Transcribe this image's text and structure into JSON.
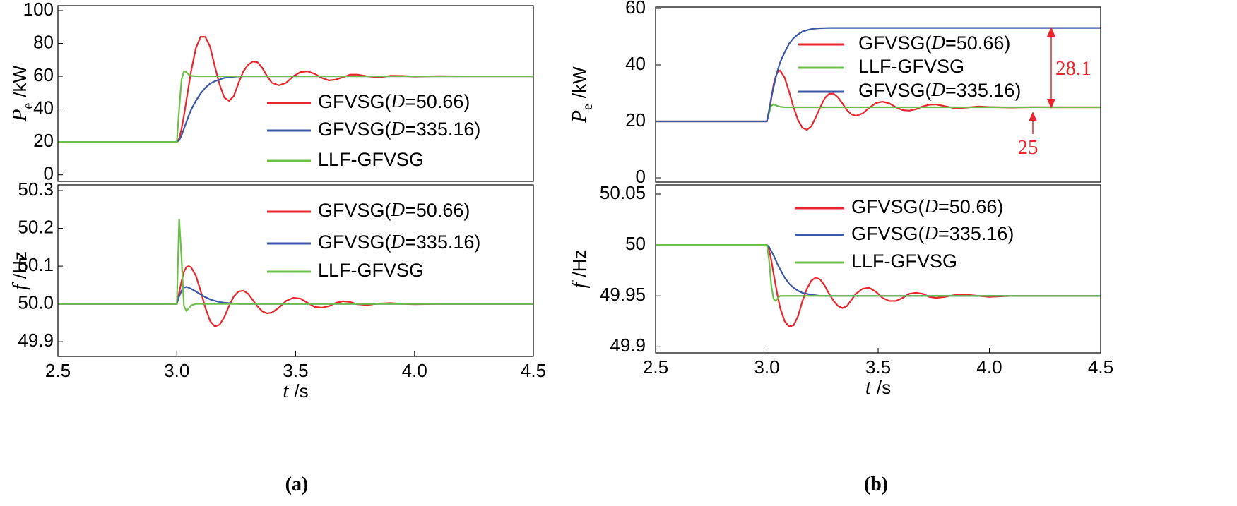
{
  "chart_data": [
    {
      "type": "line",
      "ylabel": {
        "symbol": "P",
        "subscript": "e",
        "unit": "/kW"
      },
      "xlim": [
        2.5,
        4.5
      ],
      "ylim": [
        -4,
        103
      ],
      "yticks": [
        0,
        20,
        40,
        60,
        80,
        100
      ],
      "x": [
        2.5,
        3.0,
        3.01,
        3.02,
        3.03,
        3.04,
        3.05,
        3.06,
        3.08,
        3.1,
        3.12,
        3.14,
        3.16,
        3.18,
        3.2,
        3.22,
        3.24,
        3.26,
        3.28,
        3.3,
        3.32,
        3.34,
        3.36,
        3.38,
        3.4,
        3.43,
        3.46,
        3.49,
        3.52,
        3.55,
        3.58,
        3.61,
        3.64,
        3.67,
        3.7,
        3.73,
        3.76,
        3.8,
        3.85,
        3.9,
        3.95,
        4.0,
        4.1,
        4.2,
        4.3,
        4.4,
        4.5
      ],
      "series": [
        {
          "name": "GFVSG(D=50.66)",
          "color": "#e8262b",
          "values": [
            20,
            20,
            22,
            28,
            36,
            45,
            54,
            63,
            77,
            84,
            84,
            78,
            66,
            55,
            47,
            45,
            48,
            56,
            63,
            67,
            69,
            68.5,
            65,
            60,
            56,
            54.5,
            56,
            60,
            62.5,
            63,
            61.5,
            59,
            57.5,
            58,
            59.5,
            61,
            61,
            60,
            59.3,
            60.3,
            60.2,
            59.8,
            60.1,
            60,
            60,
            60,
            60
          ]
        },
        {
          "name": "GFVSG(D=335.16)",
          "color": "#3a58a8",
          "values": [
            20,
            20,
            21,
            24,
            28,
            32,
            36,
            39.5,
            45,
            49.5,
            53,
            55.5,
            57,
            58,
            59,
            59.4,
            59.7,
            59.9,
            60,
            60,
            60,
            60,
            60,
            60,
            60,
            60,
            60,
            60,
            60,
            60,
            60,
            60,
            60,
            60,
            60,
            60,
            60,
            60,
            60,
            60,
            60,
            60,
            60,
            60,
            60,
            60,
            60
          ]
        },
        {
          "name": "LLF-GFVSG",
          "color": "#6cc04a",
          "values": [
            20,
            20,
            40,
            58,
            63,
            62.5,
            61,
            60.3,
            60,
            60,
            60,
            60,
            60,
            60,
            60,
            60,
            60,
            60,
            60,
            60,
            60,
            60,
            60,
            60,
            60,
            60,
            60,
            60,
            60,
            60,
            60,
            60,
            60,
            60,
            60,
            60,
            60,
            60,
            60,
            60,
            60,
            60,
            60,
            60,
            60,
            60,
            60
          ]
        }
      ]
    },
    {
      "type": "line",
      "ylabel": {
        "symbol": "f",
        "unit": "/Hz"
      },
      "xlabel": {
        "symbol": "t",
        "unit": "/s"
      },
      "xlim": [
        2.5,
        4.5
      ],
      "xticks": [
        2.5,
        {
          "value": 3,
          "label": "3.0"
        },
        3.5,
        {
          "value": 4,
          "label": "4.0"
        },
        4.5
      ],
      "ylim": [
        49.861,
        50.315
      ],
      "yticks": [
        49.9,
        {
          "value": 50,
          "label": "50.0"
        },
        50.1,
        50.2,
        50.3
      ],
      "x": [
        2.5,
        3.0,
        3.01,
        3.02,
        3.03,
        3.04,
        3.05,
        3.06,
        3.08,
        3.1,
        3.12,
        3.14,
        3.16,
        3.18,
        3.2,
        3.22,
        3.24,
        3.26,
        3.28,
        3.3,
        3.32,
        3.34,
        3.36,
        3.38,
        3.4,
        3.43,
        3.46,
        3.49,
        3.52,
        3.55,
        3.58,
        3.61,
        3.64,
        3.67,
        3.7,
        3.73,
        3.76,
        3.8,
        3.85,
        3.9,
        3.95,
        4.0,
        4.1,
        4.2,
        4.3,
        4.4,
        4.5
      ],
      "series": [
        {
          "name": "GFVSG(D=50.66)",
          "color": "#e8262b",
          "values": [
            50,
            50,
            50.03,
            50.06,
            50.085,
            50.097,
            50.1,
            50.097,
            50.075,
            50.035,
            49.99,
            49.955,
            49.94,
            49.945,
            49.965,
            49.995,
            50.02,
            50.033,
            50.035,
            50.027,
            50.01,
            49.993,
            49.98,
            49.975,
            49.977,
            49.99,
            50.008,
            50.016,
            50.014,
            50.003,
            49.992,
            49.99,
            49.994,
            50.003,
            50.007,
            50.005,
            49.999,
            49.997,
            50.001,
            50.002,
            50,
            49.999,
            50,
            50,
            50,
            50,
            50
          ]
        },
        {
          "name": "GFVSG(D=335.16)",
          "color": "#3a58a8",
          "values": [
            50,
            50,
            50.02,
            50.035,
            50.043,
            50.045,
            50.043,
            50.04,
            50.033,
            50.025,
            50.018,
            50.012,
            50.008,
            50.005,
            50.003,
            50.002,
            50.001,
            50,
            50,
            50,
            50,
            50,
            50,
            50,
            50,
            50,
            50,
            50,
            50,
            50,
            50,
            50,
            50,
            50,
            50,
            50,
            50,
            50,
            50,
            50,
            50,
            50,
            50,
            50,
            50,
            50,
            50
          ]
        },
        {
          "name": "LLF-GFVSG",
          "color": "#6cc04a",
          "values": [
            50,
            50,
            50.225,
            50.12,
            49.995,
            49.982,
            49.988,
            49.996,
            50,
            50,
            50,
            50,
            50,
            50,
            50,
            50,
            50,
            50,
            50,
            50,
            50,
            50,
            50,
            50,
            50,
            50,
            50,
            50,
            50,
            50,
            50,
            50,
            50,
            50,
            50,
            50,
            50,
            50,
            50,
            50,
            50,
            50,
            50,
            50,
            50,
            50,
            50
          ]
        }
      ]
    },
    {
      "type": "line",
      "ylabel": {
        "symbol": "P",
        "subscript": "e",
        "unit": "/kW"
      },
      "xlim": [
        2.5,
        4.5
      ],
      "ylim": [
        -1.5,
        60.5
      ],
      "yticks": [
        0,
        20,
        40,
        60
      ],
      "annotations": [
        "28.1",
        "25"
      ],
      "x": [
        2.5,
        3.0,
        3.01,
        3.02,
        3.03,
        3.04,
        3.05,
        3.06,
        3.08,
        3.1,
        3.12,
        3.14,
        3.16,
        3.18,
        3.2,
        3.22,
        3.24,
        3.26,
        3.28,
        3.3,
        3.32,
        3.34,
        3.36,
        3.38,
        3.4,
        3.43,
        3.46,
        3.49,
        3.52,
        3.55,
        3.58,
        3.61,
        3.64,
        3.67,
        3.7,
        3.73,
        3.76,
        3.8,
        3.85,
        3.9,
        3.95,
        4.0,
        4.1,
        4.2,
        4.3,
        4.4,
        4.5
      ],
      "series": [
        {
          "name": "GFVSG(D=50.66)",
          "color": "#e8262b",
          "values": [
            20,
            20,
            23,
            28,
            33,
            36,
            37.7,
            38,
            35.5,
            30.5,
            25,
            20.5,
            17.7,
            17,
            18.3,
            21.5,
            25,
            28.2,
            29.8,
            29.8,
            28.5,
            26.3,
            24,
            22.5,
            22,
            22.8,
            24.8,
            26.5,
            27,
            26.4,
            25,
            24,
            23.8,
            24.3,
            25.3,
            25.9,
            26,
            25.4,
            24.6,
            24.9,
            25.3,
            25.1,
            24.9,
            25.05,
            25,
            25,
            25
          ]
        },
        {
          "name": "LLF-GFVSG",
          "color": "#6cc04a",
          "values": [
            20,
            20,
            23,
            25.5,
            26,
            25.7,
            25.4,
            25.2,
            25,
            25,
            25,
            25,
            25,
            25,
            25,
            25,
            25,
            25,
            25,
            25,
            25,
            25,
            25,
            25,
            25,
            25,
            25,
            25,
            25,
            25,
            25,
            25,
            25,
            25,
            25,
            25,
            25,
            25,
            25,
            25,
            25,
            25,
            25,
            25,
            25,
            25,
            25
          ]
        },
        {
          "name": "GFVSG(D=335.16)",
          "color": "#3a58a8",
          "values": [
            20,
            20,
            24,
            28.5,
            32,
            35.5,
            38.5,
            41,
            44.5,
            47.5,
            49.5,
            50.8,
            51.8,
            52.3,
            52.7,
            52.9,
            53,
            53.05,
            53.1,
            53.1,
            53.1,
            53.1,
            53.1,
            53.1,
            53.1,
            53.1,
            53.1,
            53.1,
            53.1,
            53.1,
            53.1,
            53.1,
            53.1,
            53.1,
            53.1,
            53.1,
            53.1,
            53.1,
            53.1,
            53.1,
            53.1,
            53.1,
            53.1,
            53.1,
            53.1,
            53.1,
            53.1
          ]
        }
      ]
    },
    {
      "type": "line",
      "ylabel": {
        "symbol": "f",
        "unit": "/Hz"
      },
      "xlabel": {
        "symbol": "t",
        "unit": "/s"
      },
      "xlim": [
        2.5,
        4.5
      ],
      "xticks": [
        2.5,
        {
          "value": 3,
          "label": "3.0"
        },
        3.5,
        {
          "value": 4,
          "label": "4.0"
        },
        4.5
      ],
      "ylim": [
        49.894,
        50.059
      ],
      "yticks": [
        49.9,
        49.95,
        50,
        50.05
      ],
      "x": [
        2.5,
        3.0,
        3.01,
        3.02,
        3.03,
        3.04,
        3.05,
        3.06,
        3.08,
        3.1,
        3.12,
        3.14,
        3.16,
        3.18,
        3.2,
        3.22,
        3.24,
        3.26,
        3.28,
        3.3,
        3.32,
        3.34,
        3.36,
        3.38,
        3.4,
        3.43,
        3.46,
        3.49,
        3.52,
        3.55,
        3.58,
        3.61,
        3.64,
        3.67,
        3.7,
        3.73,
        3.76,
        3.8,
        3.85,
        3.9,
        3.95,
        4.0,
        4.1,
        4.2,
        4.3,
        4.4,
        4.5
      ],
      "series": [
        {
          "name": "GFVSG(D=50.66)",
          "color": "#e8262b",
          "values": [
            50,
            50,
            49.995,
            49.985,
            49.972,
            49.96,
            49.948,
            49.938,
            49.925,
            49.92,
            49.921,
            49.93,
            49.945,
            49.957,
            49.965,
            49.968,
            49.966,
            49.96,
            49.952,
            49.945,
            49.94,
            49.938,
            49.94,
            49.946,
            49.952,
            49.957,
            49.958,
            49.954,
            49.948,
            49.945,
            49.945,
            49.948,
            49.952,
            49.953,
            49.952,
            49.949,
            49.948,
            49.949,
            49.951,
            49.951,
            49.95,
            49.949,
            49.95,
            49.95,
            49.95,
            49.95,
            49.95
          ]
        },
        {
          "name": "GFVSG(D=335.16)",
          "color": "#3a58a8",
          "values": [
            50,
            50,
            49.998,
            49.994,
            49.99,
            49.985,
            49.98,
            49.976,
            49.968,
            49.962,
            49.958,
            49.955,
            49.953,
            49.952,
            49.951,
            49.9505,
            49.95,
            49.95,
            49.95,
            49.95,
            49.95,
            49.95,
            49.95,
            49.95,
            49.95,
            49.95,
            49.95,
            49.95,
            49.95,
            49.95,
            49.95,
            49.95,
            49.95,
            49.95,
            49.95,
            49.95,
            49.95,
            49.95,
            49.95,
            49.95,
            49.95,
            49.95,
            49.95,
            49.95,
            49.95,
            49.95,
            49.95
          ]
        },
        {
          "name": "LLF-GFVSG",
          "color": "#6cc04a",
          "values": [
            50,
            50,
            49.985,
            49.96,
            49.947,
            49.945,
            49.948,
            49.95,
            49.95,
            49.95,
            49.95,
            49.95,
            49.95,
            49.95,
            49.95,
            49.95,
            49.95,
            49.95,
            49.95,
            49.95,
            49.95,
            49.95,
            49.95,
            49.95,
            49.95,
            49.95,
            49.95,
            49.95,
            49.95,
            49.95,
            49.95,
            49.95,
            49.95,
            49.95,
            49.95,
            49.95,
            49.95,
            49.95,
            49.95,
            49.95,
            49.95,
            49.95,
            49.95,
            49.95,
            49.95,
            49.95,
            49.95
          ]
        }
      ]
    }
  ],
  "panel_labels": [
    "(a)",
    "(b)"
  ]
}
